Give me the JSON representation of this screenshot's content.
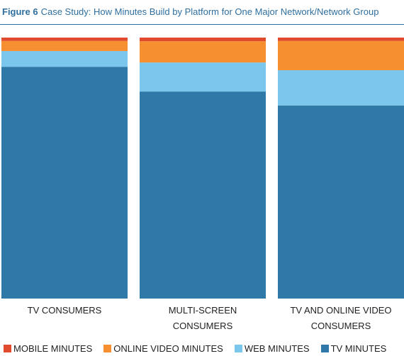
{
  "figure": {
    "number": "Figure 6",
    "title": "Case Study: How Minutes Build by Platform for One Major Network/Network Group"
  },
  "chart_data": {
    "type": "bar",
    "stacked": true,
    "normalized": true,
    "categories": [
      [
        "TV CONSUMERS"
      ],
      [
        "MULTI-SCREEN",
        "CONSUMERS"
      ],
      [
        "TV AND ONLINE VIDEO",
        "CONSUMERS"
      ]
    ],
    "series": [
      {
        "name": "TV MINUTES",
        "color": "#2e79a8",
        "values": [
          89.7,
          79.8,
          74.0
        ]
      },
      {
        "name": "WEB MINUTES",
        "color": "#7ac6ec",
        "values": [
          6.1,
          11.2,
          13.5
        ]
      },
      {
        "name": "ONLINE VIDEO MINUTES",
        "color": "#f58f2f",
        "values": [
          3.9,
          8.2,
          11.2
        ]
      },
      {
        "name": "MOBILE MINUTES",
        "color": "#e04b2e",
        "values": [
          1.3,
          1.4,
          1.3
        ]
      }
    ],
    "legend": {
      "position": "bottom",
      "order": [
        "MOBILE MINUTES",
        "ONLINE VIDEO MINUTES",
        "WEB MINUTES",
        "TV MINUTES"
      ]
    },
    "ylim": [
      0,
      100
    ],
    "grid": false
  }
}
